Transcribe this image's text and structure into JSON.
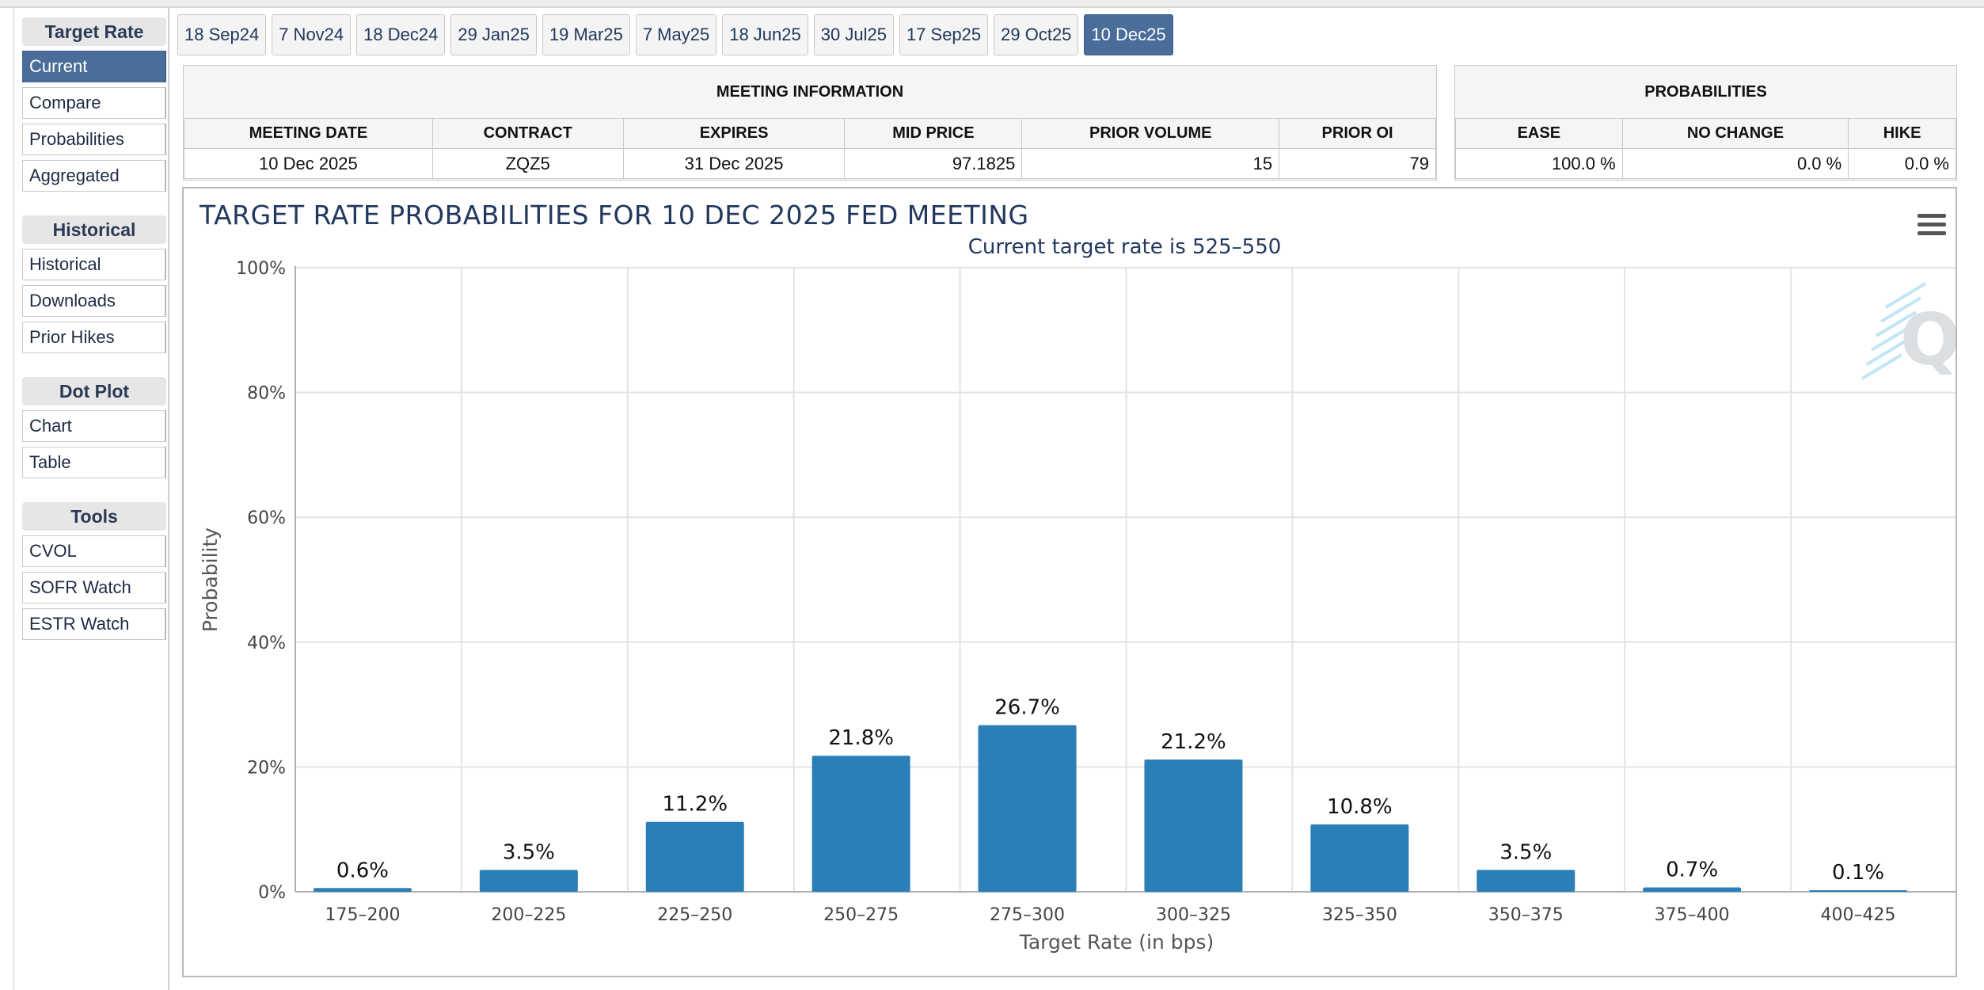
{
  "sidebar": {
    "groups": [
      {
        "heading": "Target Rate",
        "items": [
          "Current",
          "Compare",
          "Probabilities",
          "Aggregated"
        ],
        "active": 0
      },
      {
        "heading": "Historical",
        "items": [
          "Historical",
          "Downloads",
          "Prior Hikes"
        ]
      },
      {
        "heading": "Dot Plot",
        "items": [
          "Chart",
          "Table"
        ]
      },
      {
        "heading": "Tools",
        "items": [
          "CVOL",
          "SOFR Watch",
          "ESTR Watch"
        ]
      }
    ]
  },
  "tabs": {
    "items": [
      "18 Sep24",
      "7 Nov24",
      "18 Dec24",
      "29 Jan25",
      "19 Mar25",
      "7 May25",
      "18 Jun25",
      "30 Jul25",
      "17 Sep25",
      "29 Oct25",
      "10 Dec25"
    ],
    "active": 10
  },
  "meeting_info": {
    "title": "MEETING INFORMATION",
    "headers": [
      "MEETING DATE",
      "CONTRACT",
      "EXPIRES",
      "MID PRICE",
      "PRIOR VOLUME",
      "PRIOR OI"
    ],
    "row": [
      "10 Dec 2025",
      "ZQZ5",
      "31 Dec 2025",
      "97.1825",
      "15",
      "79"
    ]
  },
  "probabilities": {
    "title": "PROBABILITIES",
    "headers": [
      "EASE",
      "NO CHANGE",
      "HIKE"
    ],
    "row": [
      "100.0 %",
      "0.0 %",
      "0.0 %"
    ]
  },
  "chart": {
    "title": "TARGET RATE PROBABILITIES FOR 10 DEC 2025 FED MEETING",
    "menu_icon": "hamburger-menu-icon",
    "watermark_icon": "q-logo-icon",
    "bar_color": "#2a7fb8"
  },
  "chart_data": {
    "type": "bar",
    "subtitle": "Current target rate is 525–550",
    "categories": [
      "175–200",
      "200–225",
      "225–250",
      "250–275",
      "275–300",
      "300–325",
      "325–350",
      "350–375",
      "375–400",
      "400–425"
    ],
    "values": [
      0.6,
      3.5,
      11.2,
      21.8,
      26.7,
      21.2,
      10.8,
      3.5,
      0.7,
      0.1
    ],
    "data_labels": [
      "0.6%",
      "3.5%",
      "11.2%",
      "21.8%",
      "26.7%",
      "21.2%",
      "10.8%",
      "3.5%",
      "0.7%",
      "0.1%"
    ],
    "xlabel": "Target Rate (in bps)",
    "ylabel": "Probability",
    "ylim": [
      0,
      100
    ],
    "yticks": [
      "0%",
      "20%",
      "40%",
      "60%",
      "80%",
      "100%"
    ],
    "grid": true,
    "legend": false
  }
}
